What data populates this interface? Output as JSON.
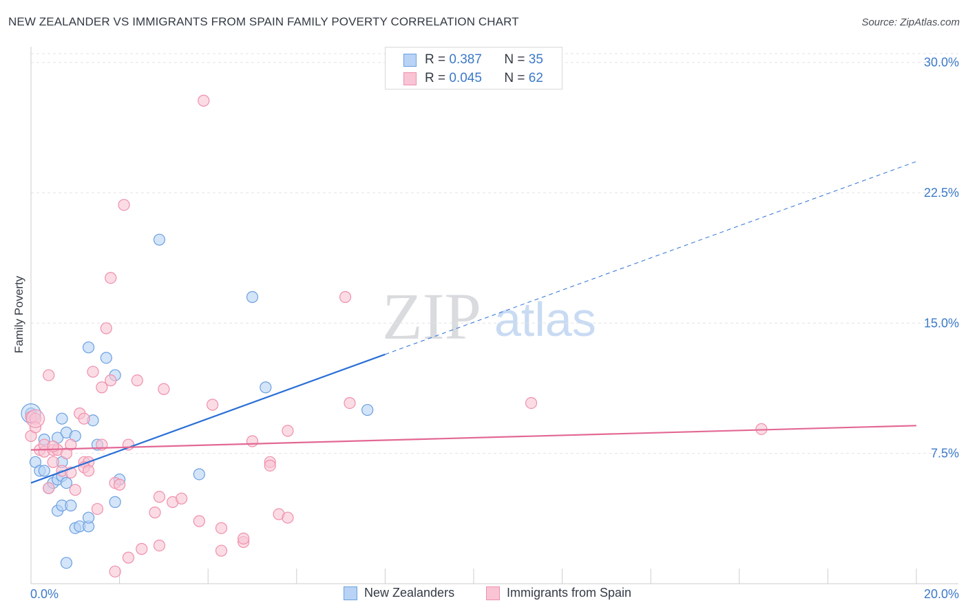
{
  "title": "NEW ZEALANDER VS IMMIGRANTS FROM SPAIN FAMILY POVERTY CORRELATION CHART",
  "source": "Source: ZipAtlas.com",
  "legend": {
    "r_label": "R =",
    "n_label": "N =",
    "rows": [
      {
        "name": "New Zealanders",
        "r": "0.387",
        "n": "35"
      },
      {
        "name": "Immigrants from Spain",
        "r": "0.045",
        "n": "62"
      }
    ]
  },
  "colors": {
    "blue_fill": "#b8d3f5",
    "blue_stroke": "#6b9fe0",
    "blue_line": "#2a6fd6",
    "pink_fill": "#f9c4d4",
    "pink_stroke": "#ef8fab",
    "pink_line": "#e26894",
    "tick_text": "#3b79c9",
    "grid": "#e3e3e3"
  },
  "chart_data": {
    "type": "scatter",
    "title": "NEW ZEALANDER VS IMMIGRANTS FROM SPAIN FAMILY POVERTY CORRELATION CHART",
    "xlabel": "",
    "ylabel": "Family Poverty",
    "xlim": [
      0,
      20
    ],
    "ylim": [
      0,
      30.9
    ],
    "x_tick_labels": [
      "0.0%",
      "20.0%"
    ],
    "y_ticks": [
      7.5,
      15.0,
      22.5,
      30.0
    ],
    "y_tick_labels": [
      "7.5%",
      "15.0%",
      "22.5%",
      "30.0%"
    ],
    "grid": true,
    "watermark": "ZIPatlas",
    "series": [
      {
        "name": "New Zealanders",
        "points": [
          [
            0.0,
            9.8
          ],
          [
            0.1,
            7.0
          ],
          [
            0.2,
            6.5
          ],
          [
            0.3,
            8.3
          ],
          [
            0.3,
            6.5
          ],
          [
            0.4,
            5.5
          ],
          [
            0.5,
            5.8
          ],
          [
            0.6,
            6.0
          ],
          [
            0.6,
            8.4
          ],
          [
            0.6,
            4.2
          ],
          [
            0.7,
            7.0
          ],
          [
            0.7,
            4.5
          ],
          [
            0.7,
            6.2
          ],
          [
            0.7,
            9.5
          ],
          [
            0.8,
            5.8
          ],
          [
            0.8,
            1.2
          ],
          [
            0.8,
            8.7
          ],
          [
            0.9,
            4.5
          ],
          [
            1.0,
            3.2
          ],
          [
            1.0,
            8.5
          ],
          [
            1.1,
            3.3
          ],
          [
            1.3,
            3.3
          ],
          [
            1.3,
            3.8
          ],
          [
            1.3,
            13.6
          ],
          [
            1.4,
            9.4
          ],
          [
            1.5,
            8.0
          ],
          [
            1.7,
            13.0
          ],
          [
            1.9,
            4.7
          ],
          [
            1.9,
            12.0
          ],
          [
            2.0,
            6.0
          ],
          [
            2.9,
            19.8
          ],
          [
            3.8,
            6.3
          ],
          [
            5.0,
            16.5
          ],
          [
            5.3,
            11.3
          ],
          [
            7.6,
            10.0
          ]
        ],
        "trend": {
          "x": [
            0.0,
            8.0
          ],
          "y": [
            5.8,
            13.2
          ],
          "dashed_extension": {
            "x": [
              8.0,
              20.0
            ],
            "y": [
              13.2,
              24.3
            ]
          }
        }
      },
      {
        "name": "Immigrants from Spain",
        "points": [
          [
            0.0,
            8.5
          ],
          [
            0.0,
            9.6
          ],
          [
            0.1,
            9.5
          ],
          [
            0.2,
            7.7
          ],
          [
            0.3,
            7.6
          ],
          [
            0.3,
            8.0
          ],
          [
            0.4,
            12.0
          ],
          [
            0.4,
            5.5
          ],
          [
            0.5,
            7.0
          ],
          [
            0.5,
            7.7
          ],
          [
            0.6,
            7.7
          ],
          [
            0.7,
            6.5
          ],
          [
            0.8,
            7.5
          ],
          [
            0.9,
            8.0
          ],
          [
            1.0,
            5.4
          ],
          [
            1.1,
            9.8
          ],
          [
            1.2,
            9.5
          ],
          [
            1.2,
            7.0
          ],
          [
            1.3,
            7.0
          ],
          [
            1.4,
            12.2
          ],
          [
            1.5,
            4.3
          ],
          [
            1.6,
            11.3
          ],
          [
            1.7,
            14.7
          ],
          [
            1.8,
            11.7
          ],
          [
            1.8,
            17.6
          ],
          [
            1.9,
            5.8
          ],
          [
            1.9,
            0.7
          ],
          [
            2.0,
            5.7
          ],
          [
            2.1,
            21.8
          ],
          [
            2.2,
            8.0
          ],
          [
            2.2,
            1.5
          ],
          [
            2.4,
            11.7
          ],
          [
            2.5,
            2.0
          ],
          [
            2.8,
            4.1
          ],
          [
            2.9,
            2.2
          ],
          [
            2.9,
            5.0
          ],
          [
            3.0,
            11.2
          ],
          [
            3.2,
            4.7
          ],
          [
            3.4,
            4.9
          ],
          [
            3.8,
            3.6
          ],
          [
            3.9,
            27.8
          ],
          [
            4.1,
            10.3
          ],
          [
            4.3,
            1.9
          ],
          [
            4.3,
            3.2
          ],
          [
            4.8,
            2.4
          ],
          [
            4.8,
            2.6
          ],
          [
            5.0,
            8.2
          ],
          [
            5.4,
            7.0
          ],
          [
            5.4,
            6.8
          ],
          [
            5.6,
            4.0
          ],
          [
            5.8,
            8.8
          ],
          [
            5.8,
            3.8
          ],
          [
            7.1,
            16.5
          ],
          [
            7.2,
            10.4
          ],
          [
            11.3,
            10.4
          ],
          [
            16.5,
            8.9
          ],
          [
            0.1,
            9.0
          ],
          [
            0.5,
            7.9
          ],
          [
            1.2,
            6.7
          ],
          [
            1.6,
            8.0
          ],
          [
            0.9,
            6.4
          ],
          [
            1.3,
            6.5
          ]
        ],
        "trend": {
          "x": [
            0.0,
            20.0
          ],
          "y": [
            7.7,
            9.1
          ]
        }
      }
    ]
  }
}
